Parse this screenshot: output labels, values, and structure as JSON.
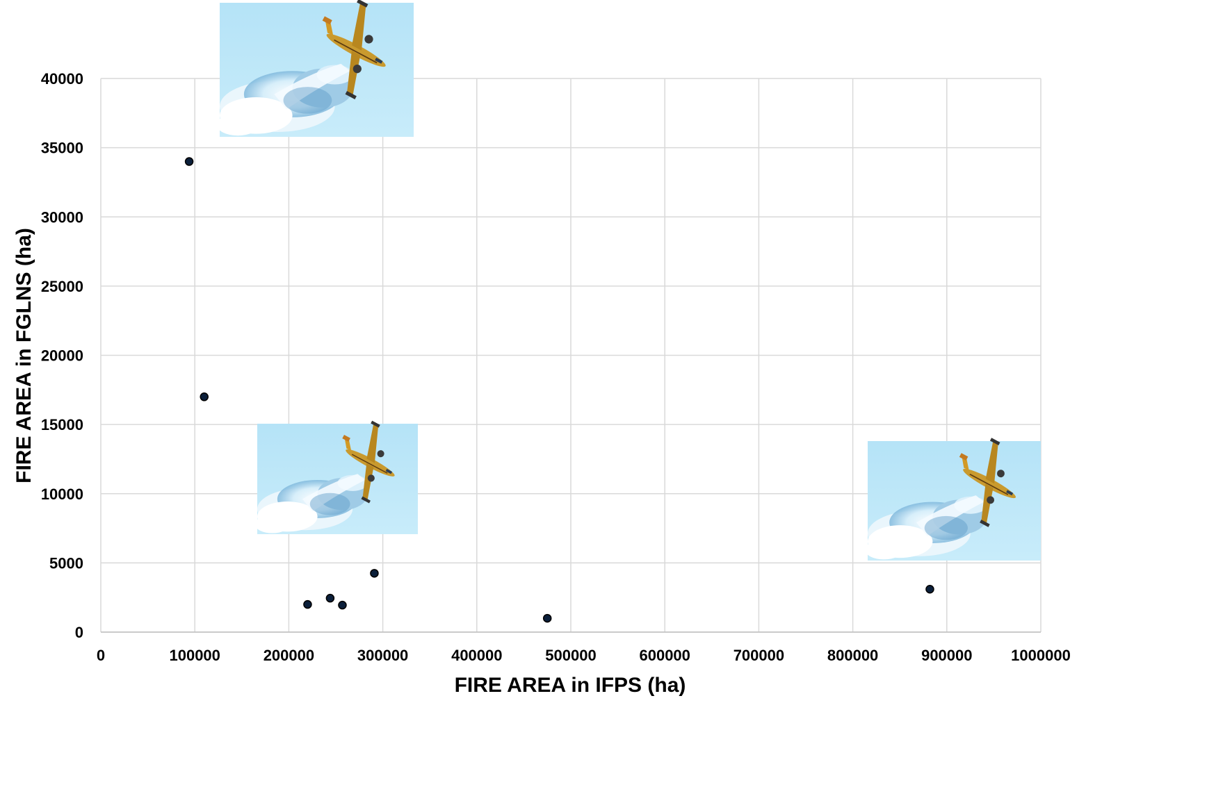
{
  "chart_data": {
    "type": "scatter",
    "title": "",
    "xlabel": "FIRE AREA in IFPS (ha)",
    "ylabel": "FIRE AREA in FGLNS (ha)",
    "xlim": [
      0,
      1000000
    ],
    "ylim": [
      0,
      40000
    ],
    "x_ticks": [
      0,
      100000,
      200000,
      300000,
      400000,
      500000,
      600000,
      700000,
      800000,
      900000,
      1000000
    ],
    "y_ticks": [
      0,
      5000,
      10000,
      15000,
      20000,
      25000,
      30000,
      35000,
      40000
    ],
    "x_tick_labels": [
      "0",
      "100000",
      "200000",
      "300000",
      "400000",
      "500000",
      "600000",
      "700000",
      "800000",
      "900000",
      "1000000"
    ],
    "y_tick_labels": [
      "0",
      "5000",
      "10000",
      "15000",
      "20000",
      "25000",
      "30000",
      "35000",
      "40000"
    ],
    "grid": true,
    "marker_color": "#0b1f3a",
    "marker_edge": "#000000",
    "points": [
      {
        "x": 94000,
        "y": 34000
      },
      {
        "x": 110000,
        "y": 17000
      },
      {
        "x": 220000,
        "y": 2000
      },
      {
        "x": 244000,
        "y": 2450
      },
      {
        "x": 257000,
        "y": 1950
      },
      {
        "x": 291000,
        "y": 4250
      },
      {
        "x": 475000,
        "y": 1000
      },
      {
        "x": 882000,
        "y": 3100
      }
    ],
    "pictures": [
      {
        "name": "firefighting-plane-photo-top"
      },
      {
        "name": "firefighting-plane-photo-middle"
      },
      {
        "name": "firefighting-plane-photo-right"
      }
    ]
  }
}
